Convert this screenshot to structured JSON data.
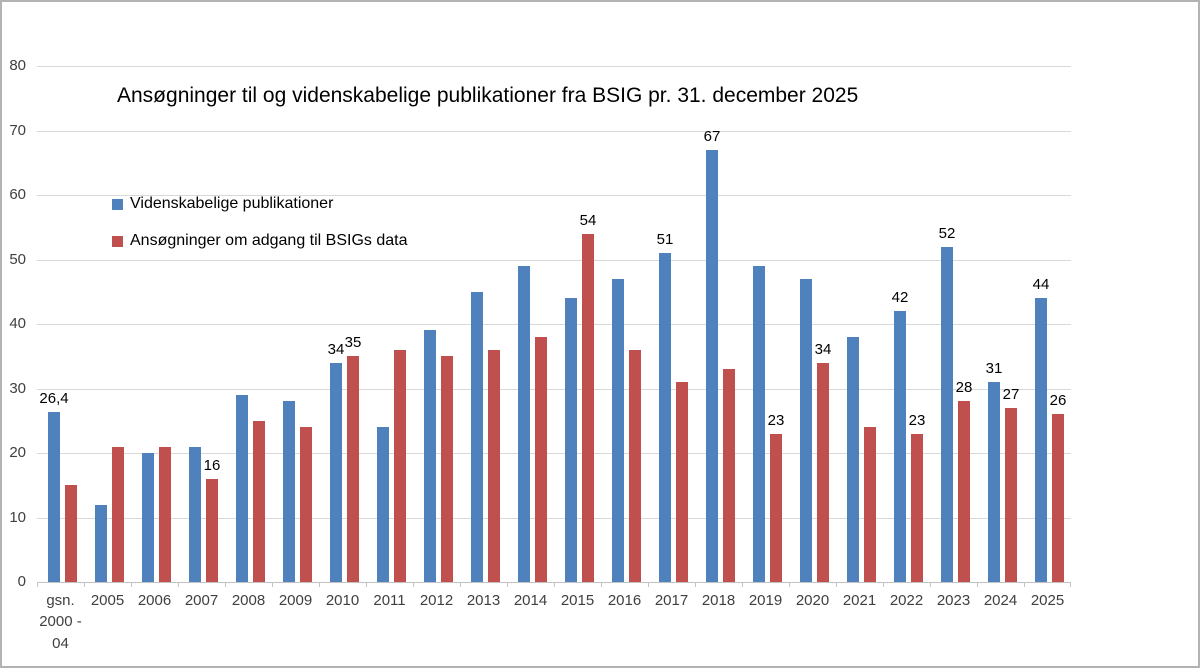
{
  "chart_data": {
    "type": "bar",
    "title": "Ansøgninger til og videnskabelige publikationer fra BSIG pr. 31. december 2025",
    "xlabel": "",
    "ylabel": "",
    "ylim": [
      0,
      80
    ],
    "yticks": [
      0,
      10,
      20,
      30,
      40,
      50,
      60,
      70,
      80
    ],
    "grid": "horizontal",
    "grid_color": "#d9d9d9",
    "axis_color": "#c3c3c3",
    "tick_label_color": "#3f3f3f",
    "legend_position": "upper-left-inside",
    "categories": [
      "gsn.\n2000 -\n04",
      "2005",
      "2006",
      "2007",
      "2008",
      "2009",
      "2010",
      "2011",
      "2012",
      "2013",
      "2014",
      "2015",
      "2016",
      "2017",
      "2018",
      "2019",
      "2020",
      "2021",
      "2022",
      "2023",
      "2024",
      "2025"
    ],
    "series": [
      {
        "name": "Videnskabelige publikationer",
        "color": "#4F81BD",
        "values": [
          26.4,
          12,
          20,
          21,
          29,
          28,
          34,
          24,
          39,
          45,
          49,
          44,
          47,
          51,
          67,
          49,
          47,
          38,
          42,
          52,
          31,
          44
        ],
        "labels": [
          "26,4",
          null,
          null,
          null,
          null,
          null,
          "34",
          null,
          null,
          null,
          null,
          null,
          null,
          "51",
          "67",
          null,
          null,
          null,
          "42",
          "52",
          "31",
          "44"
        ]
      },
      {
        "name": "Ansøgninger om adgang til BSIGs data",
        "color": "#C0504D",
        "values": [
          15,
          21,
          21,
          16,
          25,
          24,
          35,
          36,
          35,
          36,
          38,
          54,
          36,
          31,
          33,
          23,
          34,
          24,
          23,
          28,
          27,
          26
        ],
        "labels": [
          null,
          null,
          null,
          "16",
          null,
          null,
          "35",
          null,
          null,
          null,
          null,
          "54",
          null,
          null,
          null,
          "23",
          "34",
          null,
          "23",
          "28",
          "27",
          "26"
        ]
      }
    ]
  }
}
